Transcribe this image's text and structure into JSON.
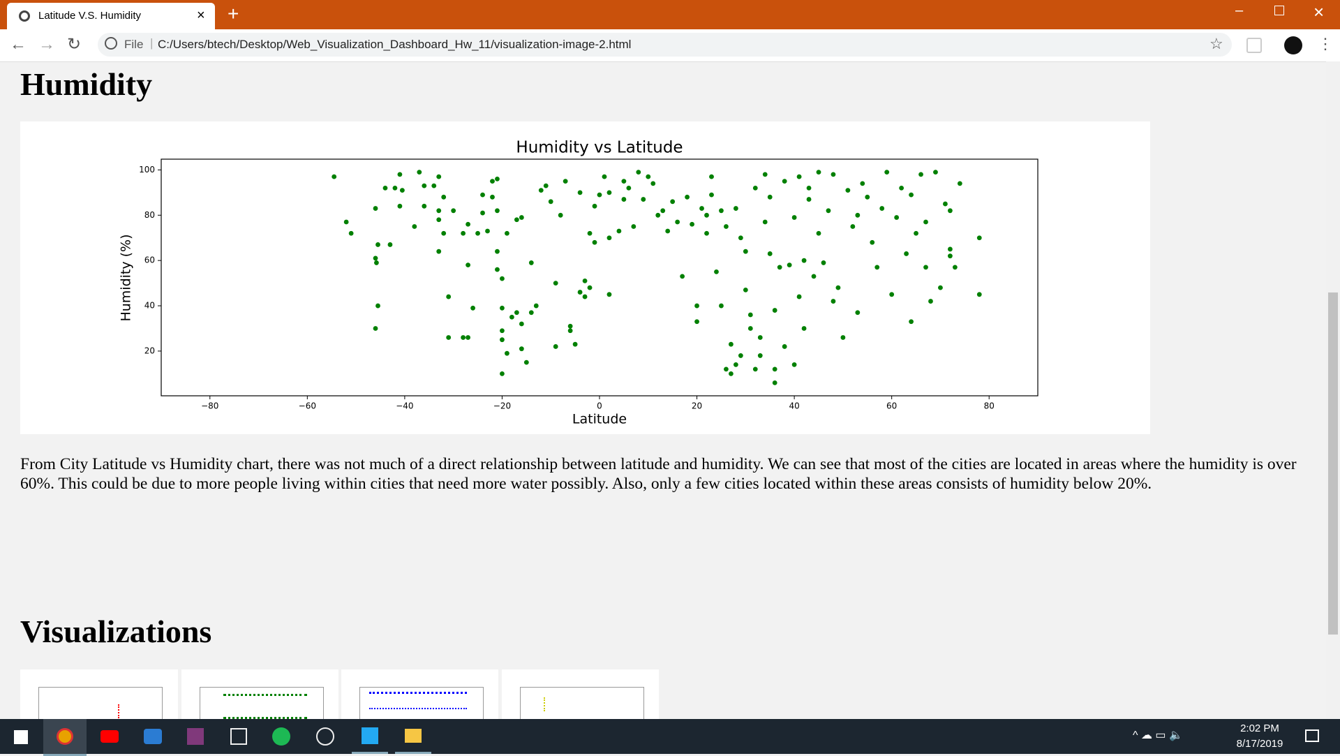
{
  "browser": {
    "tab_title": "Latitude V.S. Humidity",
    "url_scheme": "File",
    "url": "C:/Users/btech/Desktop/Web_Visualization_Dashboard_Hw_11/visualization-image-2.html"
  },
  "page": {
    "heading": "Humidity",
    "paragraph": "From City Latitude vs Humidity chart, there was not much of a direct relationship between latitude and humidity. We can see that most of the cities are located in areas where the humidity is over 60%. This could be due to more people living within cities that need more water possibly. Also, only a few cities located within these areas consists of humidity below 20%.",
    "section_heading": "Visualizations"
  },
  "chart_data": {
    "type": "scatter",
    "title": "Humidity vs Latitude",
    "x_label": "Latitude",
    "y_label": "Humidity (%)",
    "color": "#008000",
    "xlim": [
      -90,
      90
    ],
    "ylim": [
      0.25,
      104.75
    ],
    "xticks": [
      {
        "value": -80,
        "label": "−80"
      },
      {
        "value": -60,
        "label": "−60"
      },
      {
        "value": -40,
        "label": "−40"
      },
      {
        "value": -20,
        "label": "−20"
      },
      0,
      20,
      40,
      60,
      80
    ],
    "yticks": [
      20,
      40,
      60,
      80,
      100
    ],
    "x": [
      -54.5,
      -52,
      -51,
      -46,
      -46,
      -45.8,
      -45.5,
      -45.5,
      -46,
      -43,
      -44,
      -42,
      -41,
      -41,
      -40.5,
      -38,
      -37,
      -36,
      -36,
      -34,
      -33,
      -33,
      -33,
      -33,
      -32,
      -32,
      -31,
      -31,
      -30,
      -28,
      -28,
      -27,
      -27,
      -27,
      -26,
      -25,
      -24,
      -24,
      -23,
      -22,
      -22,
      -21,
      -21,
      -21,
      -21,
      -20,
      -20,
      -20,
      -20,
      -20,
      -19,
      -19,
      -18,
      -17,
      -17,
      -16,
      -16,
      -16,
      -15,
      -14,
      -13,
      -14,
      -12,
      -11,
      -10,
      -9,
      -9,
      -8,
      -7,
      -6,
      -6,
      -5,
      -4,
      -4,
      -3,
      -3,
      -2,
      -2,
      -1,
      -1,
      0,
      1,
      2,
      2,
      2,
      4,
      5,
      5,
      6,
      7,
      8,
      9,
      10,
      11,
      12,
      13,
      14,
      15,
      16,
      17,
      18,
      19,
      20,
      20,
      21,
      22,
      22,
      23,
      23,
      24,
      25,
      25,
      26,
      26,
      27,
      27,
      28,
      28,
      29,
      29,
      30,
      30,
      31,
      31,
      32,
      32,
      33,
      33,
      34,
      34,
      35,
      35,
      36,
      36,
      36,
      37,
      38,
      38,
      39,
      40,
      40,
      41,
      41,
      42,
      42,
      43,
      43,
      44,
      45,
      45,
      46,
      47,
      48,
      48,
      49,
      50,
      51,
      52,
      53,
      53,
      54,
      55,
      56,
      57,
      58,
      59,
      60,
      61,
      62,
      63,
      64,
      64,
      65,
      66,
      67,
      67,
      68,
      69,
      70,
      71,
      72,
      72,
      72,
      73,
      74,
      78,
      78
    ],
    "values": [
      97,
      77,
      72,
      83,
      61,
      59,
      67,
      40,
      30,
      67,
      92,
      92,
      98,
      84,
      91,
      75,
      99,
      84,
      93,
      93,
      97,
      82,
      78,
      64,
      72,
      88,
      44,
      26,
      82,
      72,
      26,
      26,
      76,
      58,
      39,
      72,
      81,
      89,
      73,
      88,
      95,
      96,
      64,
      56,
      82,
      52,
      39,
      29,
      25,
      10,
      72,
      19,
      35,
      78,
      37,
      32,
      21,
      79,
      15,
      59,
      40,
      37,
      91,
      93,
      86,
      50,
      22,
      80,
      95,
      31,
      29,
      23,
      90,
      46,
      51,
      44,
      48,
      72,
      84,
      68,
      89,
      97,
      90,
      70,
      45,
      73,
      87,
      95,
      92,
      75,
      99,
      87,
      97,
      94,
      80,
      82,
      73,
      86,
      77,
      53,
      88,
      76,
      40,
      33,
      83,
      80,
      72,
      97,
      89,
      55,
      82,
      40,
      12,
      75,
      23,
      10,
      14,
      83,
      18,
      70,
      64,
      47,
      36,
      30,
      92,
      12,
      26,
      18,
      98,
      77,
      63,
      88,
      12,
      6,
      38,
      57,
      95,
      22,
      58,
      14,
      79,
      97,
      44,
      30,
      60,
      92,
      87,
      53,
      99,
      72,
      59,
      82,
      42,
      98,
      48,
      26,
      91,
      75,
      80,
      37,
      94,
      88,
      68,
      57,
      83,
      99,
      45,
      79,
      92,
      63,
      33,
      89,
      72,
      98,
      57,
      77,
      42,
      99,
      48,
      85,
      82,
      65,
      62,
      57,
      94,
      45,
      70
    ]
  },
  "taskbar": {
    "time": "2:02 PM",
    "date": "8/17/2019"
  }
}
